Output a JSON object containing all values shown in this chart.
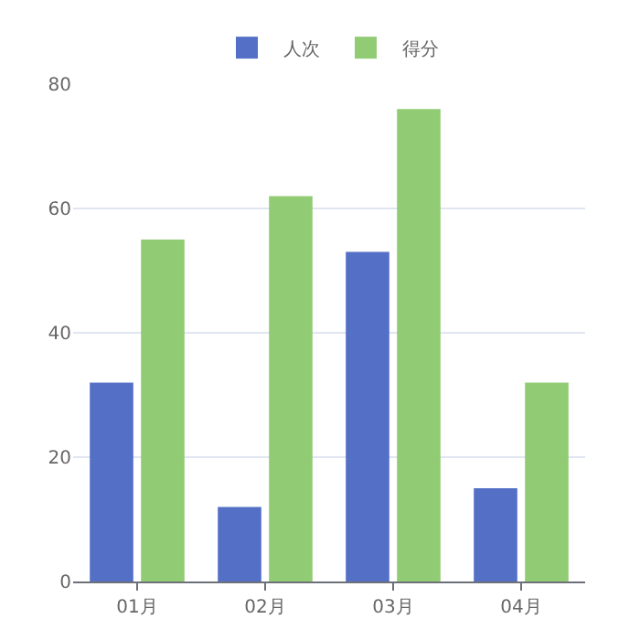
{
  "chart_data": {
    "type": "bar",
    "categories": [
      "01月",
      "02月",
      "03月",
      "04月"
    ],
    "series": [
      {
        "name": "人次",
        "color": "#5470c6",
        "values": [
          32,
          12,
          53,
          15
        ]
      },
      {
        "name": "得分",
        "color": "#91cc75",
        "values": [
          55,
          62,
          76,
          32
        ]
      }
    ],
    "ylim": [
      0,
      80
    ],
    "yticks": [
      0,
      20,
      40,
      60,
      80
    ],
    "grid": "y",
    "legend": "top"
  }
}
